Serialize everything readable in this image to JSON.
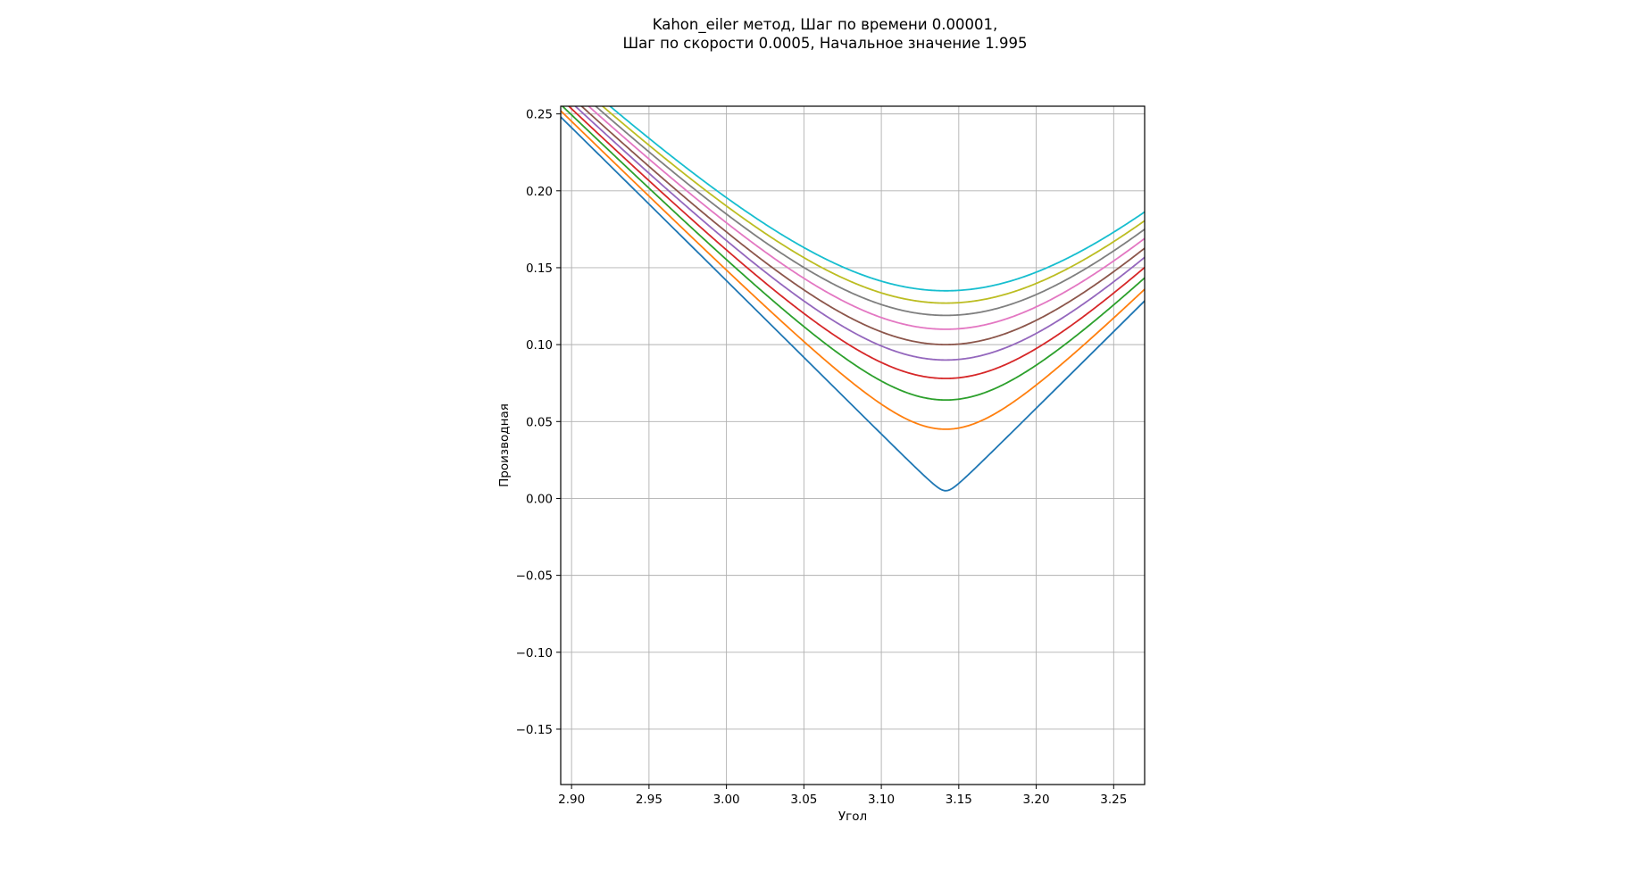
{
  "chart_data": {
    "type": "line",
    "title_lines": [
      "Kahon_eiler метод, Шаг по времени 0.00001,",
      "Шаг по скорости 0.0005, Начальное значение 1.995"
    ],
    "xlabel": "Угол",
    "ylabel": "Производная",
    "xlim": [
      2.893,
      3.27
    ],
    "ylim": [
      -0.186,
      0.255
    ],
    "xticks": [
      2.9,
      2.95,
      3.0,
      3.05,
      3.1,
      3.15,
      3.2,
      3.25
    ],
    "xtick_labels": [
      "2.90",
      "2.95",
      "3.00",
      "3.05",
      "3.10",
      "3.15",
      "3.20",
      "3.25"
    ],
    "yticks": [
      -0.15,
      -0.1,
      -0.05,
      0.0,
      0.05,
      0.1,
      0.15,
      0.2,
      0.25
    ],
    "ytick_labels": [
      "−0.15",
      "−0.10",
      "−0.05",
      "0.00",
      "0.05",
      "0.10",
      "0.15",
      "0.20",
      "0.25"
    ],
    "grid": true,
    "legend": "none",
    "separatrix_point": 3.1416,
    "left_branches": [
      {
        "vertex_x": 3.0,
        "color": "#1f77b4"
      },
      {
        "vertex_x": 3.008,
        "color": "#ff7f0e"
      },
      {
        "vertex_x": 3.016,
        "color": "#2ca02c"
      },
      {
        "vertex_x": 3.024,
        "color": "#d62728"
      },
      {
        "vertex_x": 3.033,
        "color": "#9467bd"
      },
      {
        "vertex_x": 3.042,
        "color": "#8c564b"
      },
      {
        "vertex_x": 3.053,
        "color": "#e377c2"
      },
      {
        "vertex_x": 3.065,
        "color": "#7f7f7f"
      },
      {
        "vertex_x": 3.079,
        "color": "#bcbd22"
      },
      {
        "vertex_x": 3.098,
        "color": "#17becf"
      }
    ],
    "upper_branches": [
      {
        "min_y": 0.005,
        "color": "#1f77b4"
      },
      {
        "min_y": 0.045,
        "color": "#ff7f0e"
      },
      {
        "min_y": 0.064,
        "color": "#2ca02c"
      },
      {
        "min_y": 0.078,
        "color": "#d62728"
      },
      {
        "min_y": 0.09,
        "color": "#9467bd"
      },
      {
        "min_y": 0.1,
        "color": "#8c564b"
      },
      {
        "min_y": 0.11,
        "color": "#e377c2"
      },
      {
        "min_y": 0.119,
        "color": "#7f7f7f"
      },
      {
        "min_y": 0.127,
        "color": "#bcbd22"
      },
      {
        "min_y": 0.135,
        "color": "#17becf"
      }
    ]
  }
}
